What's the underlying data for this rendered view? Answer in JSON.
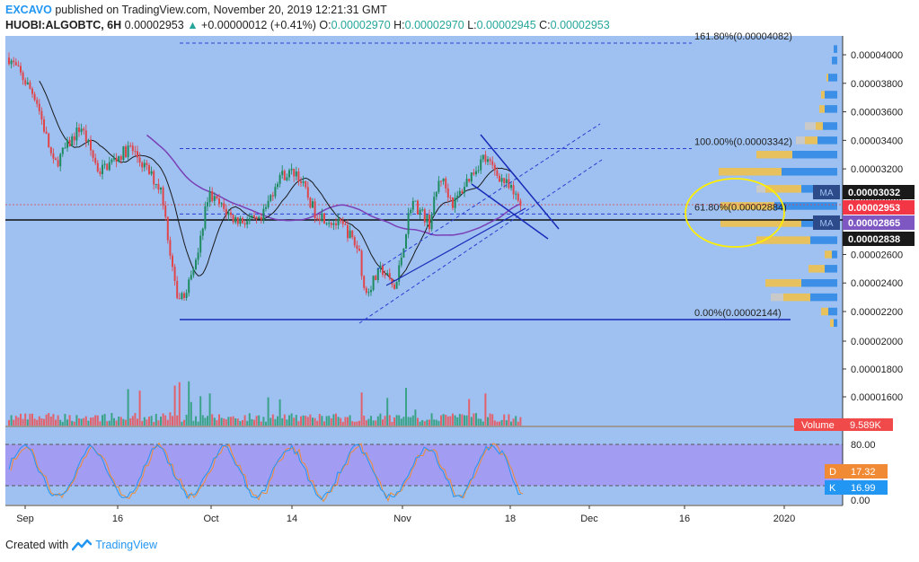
{
  "header": {
    "publisher": "EXCAVO",
    "published_text": "published on TradingView.com, November 20, 2019 12:21:31 GMT",
    "symbol": "HUOBI:ALGOBTC, 6H",
    "last_price": "0.00002953",
    "change_arrow": "▲",
    "change": "+0.00000012 (+0.41%)",
    "o_label": "O:",
    "o_value": "0.00002970",
    "h_label": "H:",
    "h_value": "0.00002970",
    "l_label": "L:",
    "l_value": "0.00002945",
    "c_label": "C:",
    "c_value": "0.00002953"
  },
  "footer": {
    "created_with": "Created with",
    "brand": "TradingView"
  },
  "colors": {
    "pane_bg": "#9ec1f2",
    "up": "#1e8a60",
    "down": "#e0454a",
    "fib_line": "#2233bb",
    "ma_slow": "#7a3fb5",
    "ma_fast": "#1a1a1a",
    "stoch_band": "#a29df2",
    "stoch_k": "#2196f3",
    "stoch_d": "#f08a34",
    "annotation": "#ffee00",
    "vp_up": "#e7c15d",
    "vp_down": "#3b8fe6",
    "vp_grey": "#c9c9c9"
  },
  "chart_data": {
    "type": "candlestick",
    "price_axis": {
      "ticks": [
        2.2e-05,
        2.4e-05,
        2.6e-05,
        2.8e-05,
        3e-05,
        3.2e-05,
        3.4e-05,
        3.6e-05,
        3.8e-05,
        4e-05
      ],
      "labels": [
        "0.00002200",
        "0.00002400",
        "0.00002600",
        "0.00002800",
        "0.00003000",
        "0.00003200",
        "0.00003400",
        "0.00003600",
        "0.00003800",
        "0.00004000"
      ],
      "volume_labels": [
        "0.00002000",
        "0.00001800",
        "0.00001600"
      ],
      "range": [
        2.12e-05,
        4.09e-05
      ]
    },
    "time_axis": {
      "labels": [
        "Sep",
        "16",
        "Oct",
        "14",
        "Nov",
        "18",
        "Dec",
        "16",
        "2020"
      ]
    },
    "price_labels": [
      {
        "text": "MA",
        "value": "0.00003032",
        "color": "#1a1a1a"
      },
      {
        "text": "",
        "value": "0.00002953",
        "color": "#f23645"
      },
      {
        "text": "MA",
        "value": "0.00002865",
        "color": "#7e57c2"
      },
      {
        "text": "",
        "value": "0.00002838",
        "color": "#1a1a1a"
      }
    ],
    "fib_levels": [
      {
        "label": "161.80%(0.00004082)",
        "price": 4.082e-05
      },
      {
        "label": "100.00%(0.00003342)",
        "price": 3.342e-05
      },
      {
        "label": "61.80%(0.00002884)",
        "price": 2.884e-05
      },
      {
        "label": "0.00%(0.00002144)",
        "price": 2.144e-05
      }
    ],
    "volume_label": "Volume",
    "volume_value": "9.589K",
    "stochastic": {
      "levels": [
        "80.00",
        "20.00",
        "0.00"
      ],
      "d_label": "D",
      "d_value": "17.32",
      "k_label": "K",
      "k_value": "16.99"
    }
  }
}
